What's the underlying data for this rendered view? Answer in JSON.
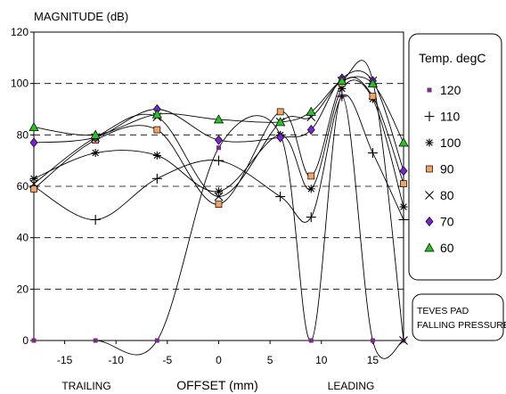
{
  "chart_data": {
    "type": "line",
    "ylabel": "MAGNITUDE (dB)",
    "xlabel": "OFFSET (mm)",
    "x_side_labels": [
      "TRAILING",
      "LEADING"
    ],
    "xlim": [
      -18,
      18
    ],
    "ylim": [
      0,
      120
    ],
    "x_ticks": [
      -15,
      -10,
      -5,
      0,
      5,
      10,
      15
    ],
    "y_ticks": [
      0,
      20,
      40,
      60,
      80,
      100,
      120
    ],
    "grid": "horizontal dashed",
    "legend_title": "Temp. degC",
    "legend_position": "right",
    "annotation_lines": [
      "TEVES PAD",
      "FALLING PRESSURE"
    ],
    "series": [
      {
        "name": "120",
        "marker": "small-square",
        "color": "#7a2a8a",
        "x": [
          -18,
          -12,
          -6,
          0,
          6,
          9,
          12,
          15,
          18
        ],
        "y": [
          0,
          0,
          0,
          75,
          80,
          0,
          95,
          0,
          0
        ]
      },
      {
        "name": "110",
        "marker": "plus",
        "color": "#000000",
        "x": [
          -18,
          -12,
          -6,
          0,
          6,
          9,
          12,
          15,
          18
        ],
        "y": [
          60,
          47,
          63,
          70,
          56,
          48,
          95,
          73,
          47
        ]
      },
      {
        "name": "100",
        "marker": "asterisk",
        "color": "#000000",
        "x": [
          -18,
          -12,
          -6,
          0,
          6,
          9,
          12,
          15,
          18
        ],
        "y": [
          63,
          73,
          72,
          58,
          80,
          59,
          98,
          94,
          52
        ]
      },
      {
        "name": "90",
        "marker": "square",
        "color": "#f4a460",
        "x": [
          -18,
          -12,
          -6,
          0,
          6,
          9,
          12,
          15,
          18
        ],
        "y": [
          59,
          78,
          82,
          53,
          89,
          64,
          100,
          95,
          61
        ]
      },
      {
        "name": "80",
        "marker": "cross",
        "color": "#000000",
        "x": [
          -18,
          -12,
          -6,
          0,
          6,
          9,
          12,
          15,
          18
        ],
        "y": [
          61,
          79,
          87,
          56,
          85,
          87,
          101,
          101,
          0
        ]
      },
      {
        "name": "70",
        "marker": "diamond",
        "color": "#7b22d8",
        "x": [
          -18,
          -12,
          -6,
          0,
          6,
          9,
          12,
          15,
          18
        ],
        "y": [
          77,
          79,
          90,
          78,
          79,
          82,
          102,
          101,
          66
        ]
      },
      {
        "name": "60",
        "marker": "triangle",
        "color": "#22c422",
        "x": [
          -18,
          -12,
          -6,
          0,
          6,
          9,
          12,
          15,
          18
        ],
        "y": [
          83,
          80,
          88,
          86,
          85,
          89,
          101,
          100,
          77
        ]
      }
    ]
  }
}
